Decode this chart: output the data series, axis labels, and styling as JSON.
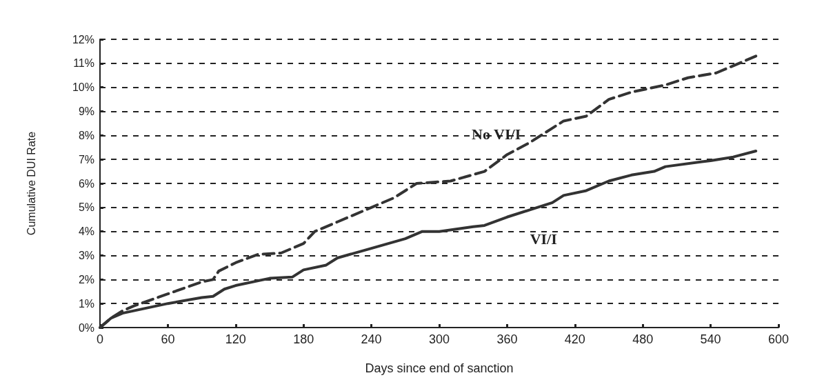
{
  "chart_data": {
    "type": "line",
    "xlabel": "Days since end of sanction",
    "ylabel": "Cumulative DUI Rate",
    "xlim": [
      0,
      600
    ],
    "xticks": [
      0,
      60,
      120,
      180,
      240,
      300,
      360,
      420,
      480,
      540,
      600
    ],
    "ylim": [
      0,
      12
    ],
    "yticks": [
      {
        "value": 0,
        "label": "0%"
      },
      {
        "value": 1,
        "label": "1%"
      },
      {
        "value": 2,
        "label": "2%"
      },
      {
        "value": 3,
        "label": "3%"
      },
      {
        "value": 4,
        "label": "4%"
      },
      {
        "value": 5,
        "label": "5%"
      },
      {
        "value": 6,
        "label": "6%"
      },
      {
        "value": 7,
        "label": "7%"
      },
      {
        "value": 8,
        "label": "8%"
      },
      {
        "value": 9,
        "label": "9%"
      },
      {
        "value": 10,
        "label": "10%"
      },
      {
        "value": 11,
        "label": "11%"
      },
      {
        "value": 12,
        "label": "12%"
      }
    ],
    "grid": "y",
    "marker": "none",
    "series": [
      {
        "name": "No VI/I",
        "color": "#333333",
        "line_style": "dashed",
        "x": [
          0,
          10,
          20,
          30,
          60,
          90,
          100,
          105,
          120,
          140,
          160,
          180,
          190,
          210,
          240,
          260,
          280,
          310,
          340,
          360,
          380,
          400,
          410,
          430,
          450,
          470,
          500,
          520,
          545,
          580
        ],
        "values": [
          0,
          0.4,
          0.7,
          0.9,
          1.4,
          1.9,
          2.0,
          2.35,
          2.7,
          3.05,
          3.1,
          3.5,
          4.0,
          4.4,
          5.0,
          5.4,
          6.0,
          6.1,
          6.5,
          7.2,
          7.7,
          8.3,
          8.6,
          8.8,
          9.5,
          9.8,
          10.1,
          10.4,
          10.6,
          11.3
        ]
      },
      {
        "name": "VI/I",
        "color": "#333333",
        "line_style": "solid",
        "x": [
          0,
          10,
          20,
          30,
          60,
          90,
          100,
          110,
          120,
          150,
          170,
          180,
          200,
          210,
          240,
          270,
          285,
          300,
          330,
          340,
          360,
          380,
          400,
          410,
          430,
          450,
          470,
          490,
          500,
          540,
          560,
          580
        ],
        "values": [
          0,
          0.4,
          0.6,
          0.7,
          1.0,
          1.25,
          1.3,
          1.6,
          1.75,
          2.05,
          2.1,
          2.4,
          2.6,
          2.9,
          3.3,
          3.7,
          4.0,
          4.0,
          4.2,
          4.25,
          4.6,
          4.9,
          5.2,
          5.5,
          5.7,
          6.1,
          6.35,
          6.5,
          6.7,
          6.95,
          7.1,
          7.35
        ]
      }
    ]
  }
}
